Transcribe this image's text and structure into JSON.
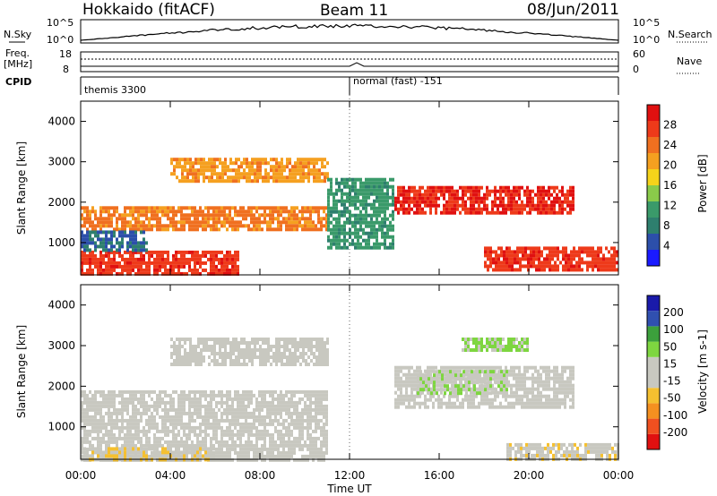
{
  "header": {
    "station": "Hokkaido (fitACF)",
    "beam": "Beam 11",
    "date": "08/Jun/2011"
  },
  "aux_panels": {
    "nsky_label": "N.Sky",
    "nsearch_label": "N.Search",
    "nsky_ticks": [
      "10^5",
      "10^0"
    ],
    "nsky_right_ticks": [
      "10^5",
      "10^0"
    ],
    "freq_label": "Freq.",
    "freq_unit": "[MHz]",
    "freq_ticks": [
      "18",
      "8"
    ],
    "nave_label": "Nave",
    "nave_ticks": [
      "60",
      "0"
    ],
    "cpid_label": "CPID",
    "cpid_mode_1": "themis 3300",
    "cpid_mode_2": "normal (fast) -151"
  },
  "colors": {
    "power_scale": [
      "#1a1aff",
      "#2c4faa",
      "#2e7f6e",
      "#3a9a6a",
      "#8acb4a",
      "#f5d31a",
      "#f5a020",
      "#f07020",
      "#ee3a1a",
      "#e01010"
    ],
    "velocity_scale": [
      "#e01010",
      "#f05020",
      "#f59020",
      "#f5c030",
      "#c8c8c0",
      "#c8c8c0",
      "#7ed640",
      "#3ca03c",
      "#3050b0",
      "#1a1aaa"
    ]
  },
  "chart_data": [
    {
      "type": "heatmap",
      "title": "",
      "xlabel": "Time UT",
      "ylabel": "Slant Range [km]",
      "xlim": [
        "00:00",
        "24:00"
      ],
      "ylim": [
        200,
        4500
      ],
      "x_ticks": [
        "00:00",
        "04:00",
        "08:00",
        "12:00",
        "16:00",
        "20:00",
        "00:00"
      ],
      "y_ticks": [
        1000,
        2000,
        3000,
        4000
      ],
      "colorbar": {
        "label": "Power [dB]",
        "ticks": [
          "4",
          "8",
          "12",
          "16",
          "20",
          "24",
          "28"
        ],
        "range": [
          0,
          30
        ]
      },
      "bands": [
        {
          "t_start": 0,
          "t_end": 7,
          "range_low": 200,
          "range_high": 800,
          "value": 26
        },
        {
          "t_start": 0,
          "t_end": 11,
          "range_low": 1300,
          "range_high": 1900,
          "value": 22
        },
        {
          "t_start": 4,
          "t_end": 11,
          "range_low": 2500,
          "range_high": 3100,
          "value": 20
        },
        {
          "t_start": 14,
          "t_end": 22,
          "range_low": 1700,
          "range_high": 2400,
          "value": 27
        },
        {
          "t_start": 18,
          "t_end": 24,
          "range_low": 300,
          "range_high": 900,
          "value": 26
        },
        {
          "t_start": 0,
          "t_end": 3,
          "range_low": 800,
          "range_high": 1300,
          "value": 6
        },
        {
          "t_start": 11,
          "t_end": 14,
          "range_low": 900,
          "range_high": 2600,
          "value": 10
        }
      ]
    },
    {
      "type": "heatmap",
      "title": "",
      "xlabel": "Time UT",
      "ylabel": "Slant Range [km]",
      "xlim": [
        "00:00",
        "24:00"
      ],
      "ylim": [
        200,
        4500
      ],
      "x_ticks": [
        "00:00",
        "04:00",
        "08:00",
        "12:00",
        "16:00",
        "20:00",
        "00:00"
      ],
      "y_ticks": [
        1000,
        2000,
        3000,
        4000
      ],
      "colorbar": {
        "label": "Velocity [m s-1]",
        "ticks": [
          "-200",
          "-100",
          "-50",
          "-15",
          "15",
          "50",
          "100",
          "200"
        ],
        "range": [
          -250,
          250
        ]
      },
      "bands": [
        {
          "t_start": 0,
          "t_end": 11,
          "range_low": 200,
          "range_high": 1900,
          "value": 0
        },
        {
          "t_start": 4,
          "t_end": 11,
          "range_low": 2500,
          "range_high": 3200,
          "value": 0
        },
        {
          "t_start": 14,
          "t_end": 22,
          "range_low": 1500,
          "range_high": 2500,
          "value": 0
        },
        {
          "t_start": 15,
          "t_end": 19,
          "range_low": 1800,
          "range_high": 2400,
          "value": 40
        },
        {
          "t_start": 0,
          "t_end": 6,
          "range_low": 200,
          "range_high": 500,
          "value": -40
        },
        {
          "t_start": 19,
          "t_end": 24,
          "range_low": 200,
          "range_high": 600,
          "value": -30
        },
        {
          "t_start": 17,
          "t_end": 20,
          "range_low": 2900,
          "range_high": 3200,
          "value": 60
        }
      ]
    }
  ]
}
